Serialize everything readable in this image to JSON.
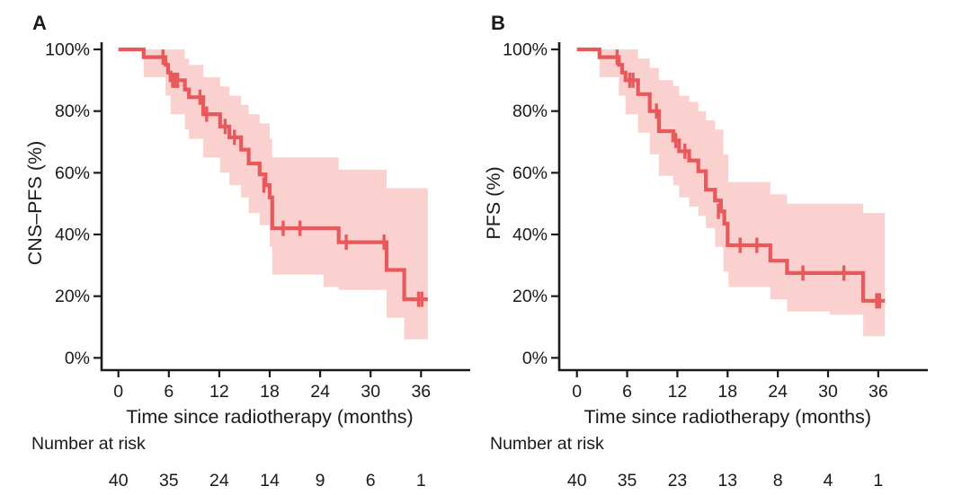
{
  "figure": {
    "background": "#ffffff"
  },
  "colors": {
    "line": "#e9595b",
    "band": "#fad1cf",
    "axis": "#1a1a1a",
    "text": "#1a1a1a"
  },
  "chart_data": [
    {
      "type": "line",
      "subtype": "kaplan-meier-step",
      "panel_label": "A",
      "xlabel": "Time since radiotherapy (months)",
      "ylabel": "CNS–PFS (%)",
      "xlim": [
        0,
        38
      ],
      "ylim": [
        0,
        100
      ],
      "grid": false,
      "xticks": [
        0,
        6,
        12,
        18,
        24,
        30,
        36
      ],
      "ytick_values": [
        0,
        20,
        40,
        60,
        80,
        100
      ],
      "ytick_labels": [
        "0%",
        "20%",
        "40%",
        "60%",
        "80%",
        "100%"
      ],
      "end_time": 36.8,
      "steps": [
        [
          0,
          100
        ],
        [
          3.0,
          97.5
        ],
        [
          5.6,
          95
        ],
        [
          5.9,
          92.5
        ],
        [
          6.2,
          90
        ],
        [
          7.9,
          87
        ],
        [
          8.4,
          84.5
        ],
        [
          10.1,
          79
        ],
        [
          12.1,
          75
        ],
        [
          13.2,
          71.5
        ],
        [
          14.6,
          67.5
        ],
        [
          15.5,
          63
        ],
        [
          16.8,
          59.5
        ],
        [
          17.5,
          56
        ],
        [
          18.0,
          52
        ],
        [
          18.3,
          42
        ],
        [
          26.2,
          37.5
        ],
        [
          31.9,
          28.5
        ],
        [
          34.0,
          19
        ]
      ],
      "censor_marks": [
        [
          5.3,
          97.5
        ],
        [
          6.45,
          90
        ],
        [
          6.75,
          90
        ],
        [
          7.05,
          90
        ],
        [
          9.7,
          84.5
        ],
        [
          10.5,
          79
        ],
        [
          12.7,
          75
        ],
        [
          13.8,
          71.5
        ],
        [
          17.3,
          56
        ],
        [
          19.6,
          42
        ],
        [
          21.6,
          42
        ],
        [
          27.1,
          37.5
        ],
        [
          31.6,
          37.5
        ],
        [
          35.7,
          19
        ],
        [
          36.1,
          19
        ]
      ],
      "ci_band": [
        [
          3.0,
          91,
          100
        ],
        [
          5.6,
          85,
          100
        ],
        [
          6.2,
          79,
          100
        ],
        [
          7.9,
          74,
          97
        ],
        [
          8.4,
          71,
          95
        ],
        [
          10.1,
          65,
          91
        ],
        [
          12.1,
          60,
          88
        ],
        [
          13.2,
          56,
          85
        ],
        [
          14.6,
          52,
          82
        ],
        [
          15.5,
          47,
          79
        ],
        [
          16.8,
          43,
          76
        ],
        [
          18.0,
          36,
          71
        ],
        [
          18.3,
          27,
          65
        ],
        [
          24.4,
          23,
          65
        ],
        [
          26.2,
          22,
          61
        ],
        [
          31.9,
          13,
          55
        ],
        [
          34.0,
          6,
          55
        ]
      ],
      "number_at_risk": {
        "label": "Number at risk",
        "times": [
          0,
          6,
          12,
          18,
          24,
          30,
          36
        ],
        "counts": [
          40,
          35,
          24,
          14,
          9,
          6,
          1
        ]
      }
    },
    {
      "type": "line",
      "subtype": "kaplan-meier-step",
      "panel_label": "B",
      "xlabel": "Time since radiotherapy (months)",
      "ylabel": "PFS (%)",
      "xlim": [
        0,
        38
      ],
      "ylim": [
        0,
        100
      ],
      "grid": false,
      "xticks": [
        0,
        6,
        12,
        18,
        24,
        30,
        36
      ],
      "ytick_values": [
        0,
        20,
        40,
        60,
        80,
        100
      ],
      "ytick_labels": [
        "0%",
        "20%",
        "40%",
        "60%",
        "80%",
        "100%"
      ],
      "end_time": 36.8,
      "steps": [
        [
          0,
          100
        ],
        [
          2.7,
          97.5
        ],
        [
          5.0,
          95
        ],
        [
          5.4,
          92.5
        ],
        [
          5.8,
          90
        ],
        [
          7.3,
          85.5
        ],
        [
          8.7,
          80
        ],
        [
          9.8,
          73.5
        ],
        [
          11.5,
          70.5
        ],
        [
          12.2,
          67
        ],
        [
          13.4,
          64
        ],
        [
          14.5,
          60.5
        ],
        [
          15.4,
          54.5
        ],
        [
          16.5,
          51
        ],
        [
          17.2,
          47.5
        ],
        [
          17.6,
          43.5
        ],
        [
          18.0,
          36.5
        ],
        [
          23.1,
          31.5
        ],
        [
          25.1,
          27.5
        ],
        [
          34.2,
          18.5
        ]
      ],
      "censor_marks": [
        [
          4.8,
          97.5
        ],
        [
          6.3,
          90
        ],
        [
          6.7,
          90
        ],
        [
          9.5,
          80
        ],
        [
          11.8,
          70.5
        ],
        [
          12.9,
          67
        ],
        [
          16.9,
          47.5
        ],
        [
          19.5,
          36.5
        ],
        [
          21.5,
          36.5
        ],
        [
          27.0,
          27.5
        ],
        [
          31.9,
          27.5
        ],
        [
          35.8,
          18.5
        ],
        [
          36.15,
          18.5
        ]
      ],
      "ci_band": [
        [
          2.7,
          91,
          100
        ],
        [
          5.0,
          85,
          100
        ],
        [
          5.8,
          79,
          100
        ],
        [
          7.3,
          73,
          97
        ],
        [
          8.7,
          66,
          94
        ],
        [
          9.8,
          59,
          90
        ],
        [
          11.5,
          56,
          88
        ],
        [
          12.2,
          52,
          85
        ],
        [
          13.4,
          49,
          83
        ],
        [
          14.5,
          46,
          80
        ],
        [
          15.4,
          42,
          77
        ],
        [
          16.5,
          36,
          74
        ],
        [
          17.5,
          28,
          66
        ],
        [
          18.1,
          23,
          57
        ],
        [
          23.1,
          19,
          53
        ],
        [
          25.1,
          15,
          50
        ],
        [
          30.2,
          14,
          50
        ],
        [
          34.2,
          7,
          47
        ]
      ],
      "number_at_risk": {
        "label": "Number at risk",
        "times": [
          0,
          6,
          12,
          18,
          24,
          30,
          36
        ],
        "counts": [
          40,
          35,
          23,
          13,
          8,
          4,
          1
        ]
      }
    }
  ]
}
